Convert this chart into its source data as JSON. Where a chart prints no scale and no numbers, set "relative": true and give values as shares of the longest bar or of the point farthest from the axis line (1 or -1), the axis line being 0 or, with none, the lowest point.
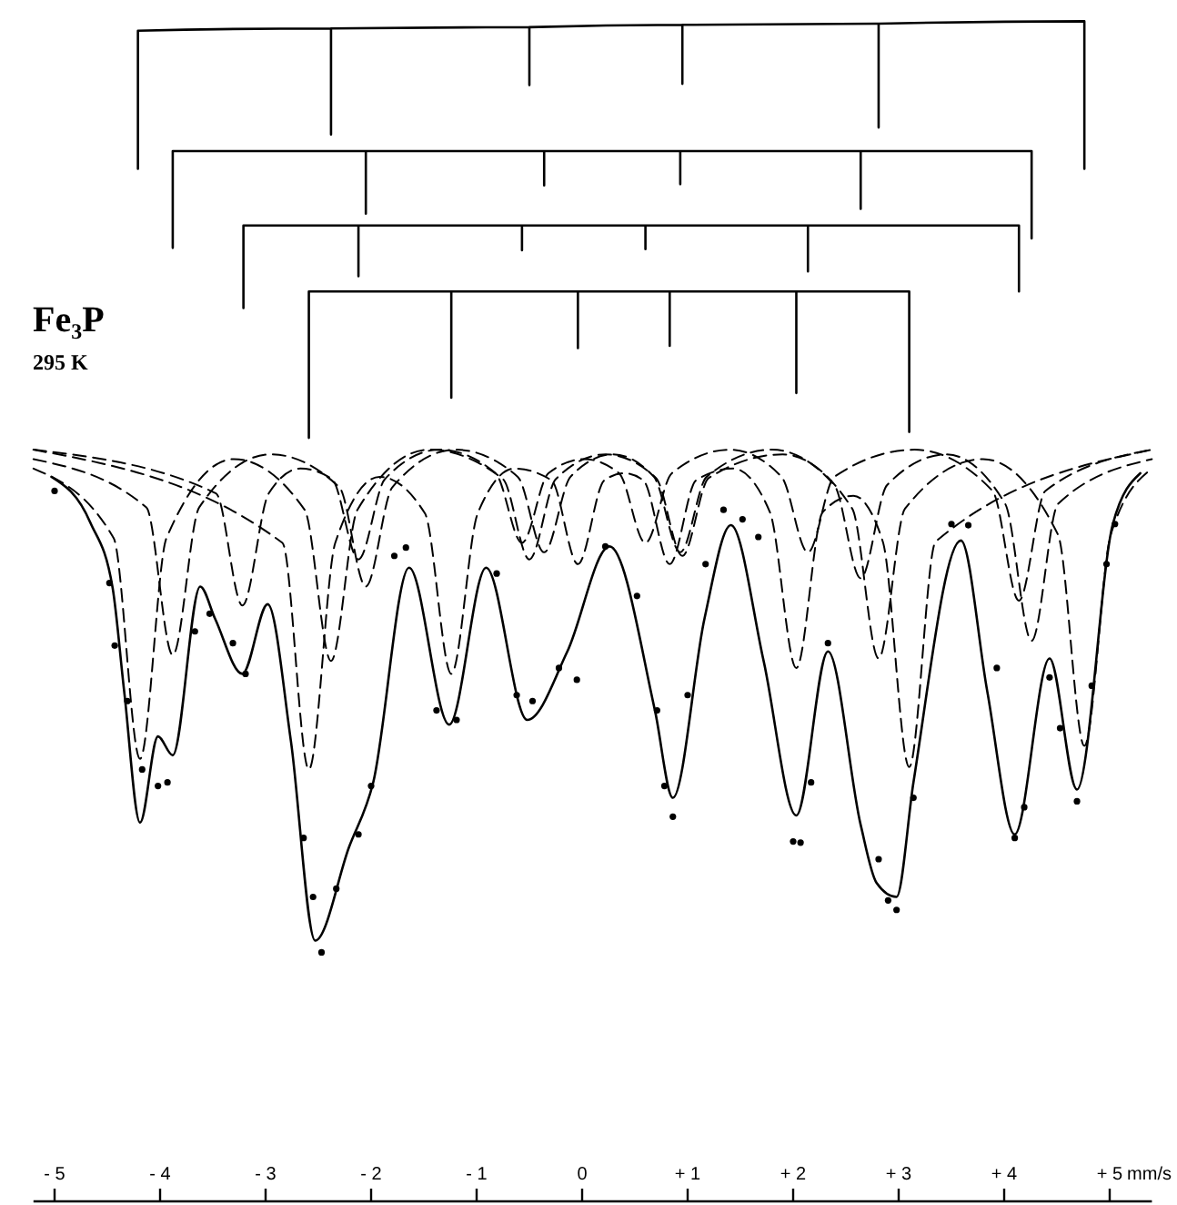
{
  "chart_data": {
    "type": "line",
    "title": "Fe₃P",
    "subtitle": "295 K",
    "xlabel": "mm/s",
    "relative": true,
    "xlim": [
      -5.2,
      5.4
    ],
    "xticks": [
      {
        "value": -5,
        "label": "- 5"
      },
      {
        "value": -4,
        "label": "- 4"
      },
      {
        "value": -3,
        "label": "- 3"
      },
      {
        "value": -2,
        "label": "- 2"
      },
      {
        "value": -1,
        "label": "- 1"
      },
      0,
      {
        "value": 1,
        "label": "+ 1"
      },
      {
        "value": 2,
        "label": "+ 2"
      },
      {
        "value": 3,
        "label": "+ 3"
      },
      {
        "value": 4,
        "label": "+ 4"
      },
      {
        "value": 5,
        "label": "+ 5"
      }
    ],
    "series": [
      {
        "color": "#000000",
        "line_style": "solid",
        "marker": "none",
        "x": [
          -5.03,
          -4.66,
          -4.45,
          -4.34,
          -4.19,
          -4.02,
          -3.88,
          -3.62,
          -3.48,
          -3.22,
          -2.98,
          -2.76,
          -2.53,
          -2.21,
          -1.98,
          -1.64,
          -1.26,
          -0.91,
          -0.52,
          -0.14,
          0.26,
          0.69,
          0.86,
          1.16,
          1.41,
          1.72,
          2.03,
          2.33,
          2.64,
          2.79,
          2.98,
          3.14,
          3.59,
          3.84,
          4.1,
          4.43,
          4.69,
          5.03,
          5.29
        ],
        "values": [
          0.614,
          0.575,
          0.52,
          0.432,
          0.321,
          0.394,
          0.378,
          0.521,
          0.494,
          0.447,
          0.506,
          0.39,
          0.221,
          0.3,
          0.355,
          0.537,
          0.404,
          0.537,
          0.408,
          0.466,
          0.555,
          0.416,
          0.342,
          0.494,
          0.573,
          0.458,
          0.327,
          0.466,
          0.319,
          0.27,
          0.258,
          0.355,
          0.56,
          0.432,
          0.311,
          0.46,
          0.349,
          0.574,
          0.617
        ]
      },
      {
        "type": "scatter",
        "color": "#000000",
        "marker": "circle",
        "x": [
          -5,
          -4.48,
          -4.43,
          -4.31,
          -4.17,
          -4.02,
          -3.93,
          -3.67,
          -3.53,
          -3.31,
          -3.19,
          -2.64,
          -2.55,
          -2.47,
          -2.33,
          -2.12,
          -2,
          -1.78,
          -1.67,
          -1.38,
          -1.19,
          -0.81,
          -0.62,
          -0.47,
          -0.22,
          -0.05,
          0.22,
          0.52,
          0.71,
          0.78,
          0.86,
          1,
          1.17,
          1.34,
          1.52,
          1.67,
          2,
          2.07,
          2.17,
          2.33,
          2.81,
          2.9,
          2.98,
          3.14,
          3.5,
          3.66,
          3.93,
          4.1,
          4.19,
          4.43,
          4.53,
          4.69,
          4.83,
          4.97,
          5.05
        ],
        "values": [
          0.602,
          0.524,
          0.471,
          0.424,
          0.366,
          0.352,
          0.355,
          0.483,
          0.498,
          0.473,
          0.447,
          0.308,
          0.258,
          0.211,
          0.265,
          0.311,
          0.352,
          0.547,
          0.554,
          0.416,
          0.408,
          0.532,
          0.429,
          0.424,
          0.452,
          0.442,
          0.555,
          0.513,
          0.416,
          0.352,
          0.326,
          0.429,
          0.54,
          0.586,
          0.578,
          0.563,
          0.305,
          0.304,
          0.355,
          0.473,
          0.29,
          0.255,
          0.247,
          0.342,
          0.574,
          0.573,
          0.452,
          0.308,
          0.334,
          0.444,
          0.401,
          0.339,
          0.437,
          0.54,
          0.574
        ]
      },
      {
        "color": "#000000",
        "line_style": "dashed",
        "marker": "none",
        "x": [
          -5.2,
          -4.44,
          -4.19,
          -3.94,
          -3.3,
          -2.63,
          -2.38,
          -2.13,
          -1.45,
          -0.75,
          -0.5,
          -0.25,
          0.22,
          0.7,
          0.95,
          1.2,
          1.9,
          2.56,
          2.81,
          3.06,
          3.8,
          4.51,
          4.76,
          5.01,
          5.4
        ],
        "values": [
          0.621,
          0.562,
          0.375,
          0.562,
          0.629,
          0.586,
          0.458,
          0.586,
          0.637,
          0.612,
          0.544,
          0.612,
          0.633,
          0.613,
          0.547,
          0.613,
          0.633,
          0.587,
          0.46,
          0.587,
          0.629,
          0.565,
          0.386,
          0.565,
          0.621
        ]
      },
      {
        "color": "#000000",
        "line_style": "dashed",
        "marker": "none",
        "x": [
          -5.2,
          -4.13,
          -3.88,
          -3.63,
          -2.95,
          -2.3,
          -2.05,
          -1.8,
          -1.2,
          -0.61,
          -0.36,
          -0.11,
          0.29,
          0.68,
          0.93,
          1.18,
          1.8,
          2.39,
          2.64,
          2.89,
          3.45,
          4.01,
          4.26,
          4.51,
          5.4
        ],
        "values": [
          0.629,
          0.588,
          0.463,
          0.588,
          0.633,
          0.605,
          0.521,
          0.605,
          0.637,
          0.614,
          0.55,
          0.614,
          0.633,
          0.614,
          0.55,
          0.614,
          0.637,
          0.607,
          0.528,
          0.607,
          0.633,
          0.591,
          0.475,
          0.591,
          0.629
        ]
      },
      {
        "color": "#000000",
        "line_style": "dashed",
        "marker": "none",
        "x": [
          -5.2,
          -3.47,
          -3.22,
          -2.97,
          -2.67,
          -2.37,
          -2.12,
          -1.87,
          -1.35,
          -0.82,
          -0.57,
          -0.32,
          0.02,
          0.35,
          0.6,
          0.85,
          1.4,
          1.89,
          2.14,
          2.39,
          3.15,
          3.89,
          4.14,
          4.39,
          5.4
        ],
        "values": [
          0.637,
          0.6,
          0.505,
          0.6,
          0.621,
          0.612,
          0.544,
          0.612,
          0.637,
          0.617,
          0.558,
          0.617,
          0.629,
          0.617,
          0.558,
          0.617,
          0.637,
          0.614,
          0.55,
          0.614,
          0.637,
          0.602,
          0.509,
          0.602,
          0.637
        ]
      },
      {
        "color": "#000000",
        "line_style": "dashed",
        "marker": "none",
        "x": [
          -5.2,
          -2.84,
          -2.59,
          -2.34,
          -1.92,
          -1.49,
          -1.24,
          -0.99,
          -0.64,
          -0.29,
          -0.04,
          0.21,
          0.4,
          0.58,
          0.83,
          1.08,
          1.43,
          1.78,
          2.03,
          2.28,
          2.57,
          2.85,
          3.1,
          3.35,
          5.4
        ],
        "values": [
          0.637,
          0.558,
          0.366,
          0.558,
          0.614,
          0.583,
          0.447,
          0.583,
          0.621,
          0.611,
          0.54,
          0.611,
          0.617,
          0.611,
          0.54,
          0.611,
          0.621,
          0.584,
          0.452,
          0.584,
          0.598,
          0.559,
          0.368,
          0.559,
          0.637
        ]
      },
      {
        "color": "#000000",
        "line_style": "solid",
        "marker": "none",
        "x": [
          -4.21,
          -4.21,
          -2.38,
          -2.38,
          -2.38,
          -0.5,
          -0.5,
          -0.5,
          0.95,
          0.95,
          0.95,
          2.81,
          2.81,
          2.81,
          4.76,
          4.76
        ],
        "values": [
          0.875,
          0.992,
          0.994,
          0.904,
          0.994,
          0.995,
          0.946,
          0.995,
          0.997,
          0.947,
          0.997,
          0.998,
          0.91,
          0.998,
          1,
          0.875
        ]
      },
      {
        "color": "#000000",
        "line_style": "solid",
        "marker": "none",
        "x": [
          -3.88,
          -3.88,
          -2.05,
          -2.05,
          -2.05,
          -0.36,
          -0.36,
          -0.36,
          0.93,
          0.93,
          0.93,
          2.64,
          2.64,
          2.64,
          4.26,
          4.26
        ],
        "values": [
          0.808,
          0.89,
          0.89,
          0.837,
          0.89,
          0.89,
          0.861,
          0.89,
          0.89,
          0.862,
          0.89,
          0.89,
          0.841,
          0.89,
          0.89,
          0.816
        ]
      },
      {
        "color": "#000000",
        "line_style": "solid",
        "marker": "none",
        "x": [
          -3.21,
          -3.21,
          -2.12,
          -2.12,
          -2.12,
          -0.57,
          -0.57,
          -0.57,
          0.6,
          0.6,
          0.6,
          2.14,
          2.14,
          2.14,
          4.14,
          4.14
        ],
        "values": [
          0.757,
          0.827,
          0.827,
          0.784,
          0.827,
          0.827,
          0.806,
          0.827,
          0.827,
          0.807,
          0.827,
          0.827,
          0.788,
          0.827,
          0.827,
          0.771
        ]
      },
      {
        "color": "#000000",
        "line_style": "solid",
        "marker": "none",
        "x": [
          -2.59,
          -2.59,
          -1.24,
          -1.24,
          -1.24,
          -0.04,
          -0.04,
          -0.04,
          0.83,
          0.83,
          0.83,
          2.03,
          2.03,
          2.03,
          3.1,
          3.1
        ],
        "values": [
          0.647,
          0.771,
          0.771,
          0.681,
          0.771,
          0.771,
          0.723,
          0.771,
          0.771,
          0.725,
          0.771,
          0.771,
          0.685,
          0.771,
          0.771,
          0.652
        ]
      }
    ]
  }
}
